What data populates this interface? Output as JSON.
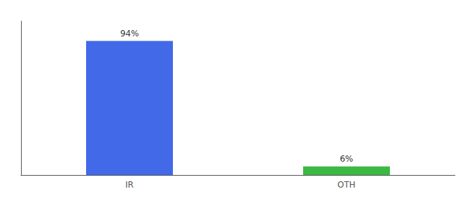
{
  "chart_data": {
    "type": "bar",
    "categories": [
      "IR",
      "OTH"
    ],
    "values": [
      94,
      6
    ],
    "value_labels": [
      "94%",
      "6%"
    ],
    "colors": [
      "#4169E8",
      "#3CB943"
    ],
    "data_labels": true,
    "ylim": [
      0,
      108
    ],
    "grid": false,
    "tick_labels": "x"
  }
}
